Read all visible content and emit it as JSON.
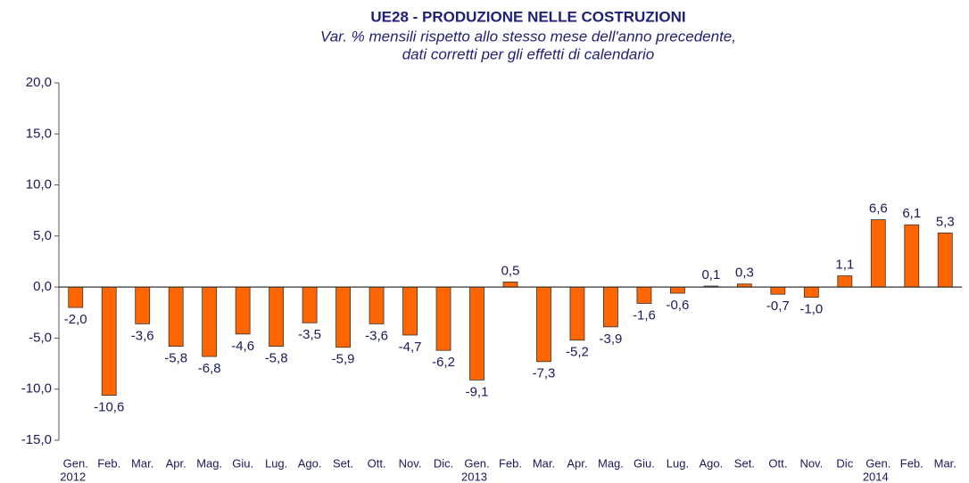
{
  "chart_data": {
    "type": "bar",
    "title": "UE28 - PRODUZIONE NELLE COSTRUZIONI",
    "subtitle": [
      "Var. % mensili rispetto allo stesso mese dell'anno precedente,",
      "dati corretti per gli effetti di calendario"
    ],
    "categories": [
      "Gen.",
      "Feb.",
      "Mar.",
      "Apr.",
      "Mag.",
      "Giu.",
      "Lug.",
      "Ago.",
      "Set.",
      "Ott.",
      "Nov.",
      "Dic.",
      "Gen.",
      "Feb.",
      "Mar.",
      "Apr.",
      "Mag.",
      "Giu.",
      "Lug.",
      "Ago.",
      "Set.",
      "Ott.",
      "Nov.",
      "Dic",
      "Gen.",
      "Feb.",
      "Mar."
    ],
    "years": [
      "2012",
      null,
      null,
      null,
      null,
      null,
      null,
      null,
      null,
      null,
      null,
      null,
      "2013",
      null,
      null,
      null,
      null,
      null,
      null,
      null,
      null,
      null,
      null,
      null,
      "2014",
      null,
      null
    ],
    "values": [
      -2.0,
      -10.6,
      -3.6,
      -5.8,
      -6.8,
      -4.6,
      -5.8,
      -3.5,
      -5.9,
      -3.6,
      -4.7,
      -6.2,
      -9.1,
      0.5,
      -7.3,
      -5.2,
      -3.9,
      -1.6,
      -0.6,
      0.1,
      0.3,
      -0.7,
      -1.0,
      1.1,
      6.6,
      6.1,
      5.3
    ],
    "value_labels": [
      "-2,0",
      "-10,6",
      "-3,6",
      "-5,8",
      "-6,8",
      "-4,6",
      "-5,8",
      "-3,5",
      "-5,9",
      "-3,6",
      "-4,7",
      "-6,2",
      "-9,1",
      "0,5",
      "-7,3",
      "-5,2",
      "-3,9",
      "-1,6",
      "-0,6",
      "0,1",
      "0,3",
      "-0,7",
      "-1,0",
      "1,1",
      "6,6",
      "6,1",
      "5,3"
    ],
    "color": "#ff6600",
    "ylim": [
      -15,
      20
    ],
    "yticks": [
      {
        "value": -15,
        "label": "-15,0"
      },
      {
        "value": -10,
        "label": "-10,0"
      },
      {
        "value": -5,
        "label": "-5,0"
      },
      {
        "value": 0,
        "label": "0,0"
      },
      {
        "value": 5,
        "label": "5,0"
      },
      {
        "value": 10,
        "label": "10,0"
      },
      {
        "value": 15,
        "label": "15,0"
      },
      {
        "value": 20,
        "label": "20,0"
      }
    ],
    "grid": false
  }
}
